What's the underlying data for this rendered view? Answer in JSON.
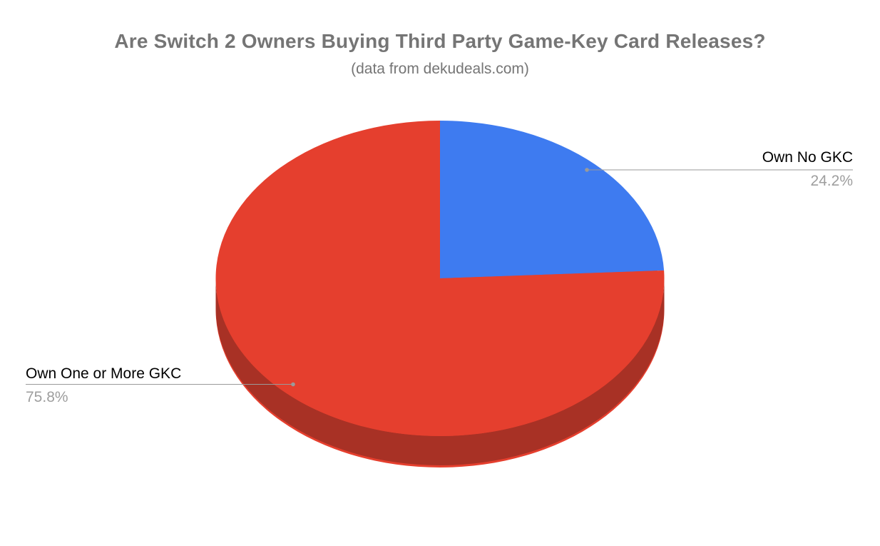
{
  "header": {
    "title": "Are Switch 2 Owners Buying Third Party Game-Key Card Releases?",
    "subtitle": "(data from dekudeals.com)"
  },
  "chart_data": {
    "type": "pie",
    "is_3d": true,
    "title": "Are Switch 2 Owners Buying Third Party Game-Key Card Releases?",
    "subtitle": "(data from dekudeals.com)",
    "start_angle_deg": 0,
    "direction": "clockwise",
    "legend_position": "labeled",
    "slices": [
      {
        "label": "Own No GKC",
        "value": 24.2,
        "pct_text": "24.2%",
        "color": "#3e7bf0",
        "side_color": "#2b56a8"
      },
      {
        "label": "Own One or More GKC",
        "value": 75.8,
        "pct_text": "75.8%",
        "color": "#e53f2e",
        "side_color": "#a83125"
      }
    ]
  },
  "colors": {
    "background": "#ffffff",
    "title_text": "#757575",
    "subtitle_text": "#757575",
    "label_text": "#000000",
    "pct_text": "#9e9e9e",
    "leader_line": "#9a9a9a",
    "leader_dot": "#9a9a9a"
  }
}
